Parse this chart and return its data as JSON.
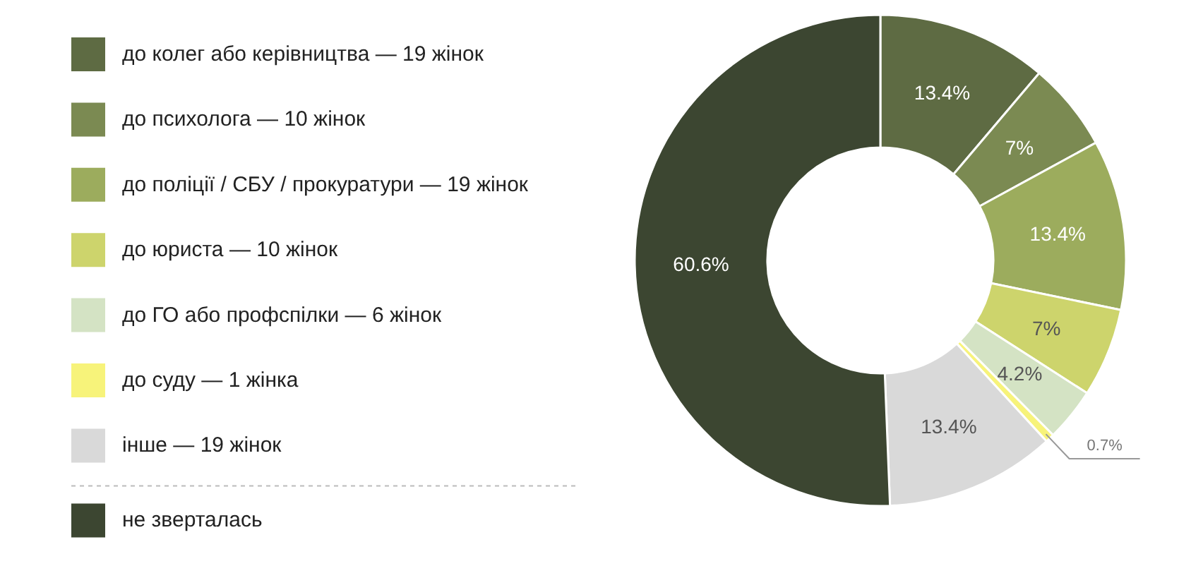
{
  "chart_data": {
    "type": "donut",
    "categories": [
      "до колег або керівництва — 19 жінок",
      "до психолога — 10 жінок",
      "до поліції / СБУ / прокуратури — 19 жінок",
      "до юриста — 10 жінок",
      "до ГО або профспілки — 6 жінок",
      "до суду — 1 жінка",
      "інше — 19 жінок",
      "не зверталась"
    ],
    "values": [
      13.4,
      7,
      13.4,
      7,
      4.2,
      0.7,
      13.4,
      60.6
    ],
    "value_labels": [
      "13.4%",
      "7%",
      "13.4%",
      "7%",
      "4.2%",
      "0.7%",
      "13.4%",
      "60.6%"
    ],
    "colors": [
      "#5e6b43",
      "#7b8a52",
      "#9cac5d",
      "#cdd46c",
      "#d4e3c4",
      "#f7f37a",
      "#d9d9d9",
      "#3c4631"
    ],
    "legend": "left"
  }
}
